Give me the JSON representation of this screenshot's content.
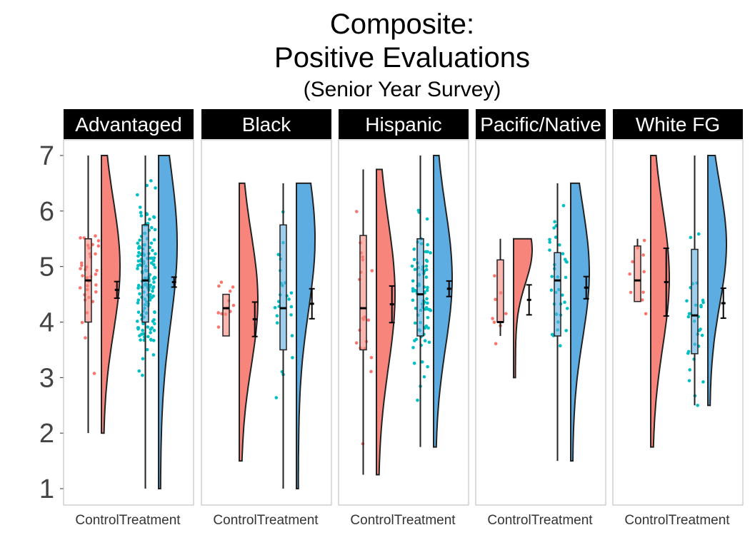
{
  "chart_data": {
    "type": "raincloud",
    "title": "Composite:",
    "title_line2": "Positive Evaluations",
    "subtitle": "(Senior Year Survey)",
    "xlabel": "",
    "ylabel": "",
    "ylim": [
      0.8,
      7.2
    ],
    "yticks": [
      1,
      2,
      3,
      4,
      5,
      6,
      7
    ],
    "categories": [
      "Control",
      "Treatment"
    ],
    "colors": {
      "Control": "#F8766D",
      "Treatment": "#00BFC4",
      "Control_fill": "#F8857B",
      "Treatment_fill": "#5DADE2"
    },
    "grid": false,
    "legend": "none",
    "panels": [
      {
        "name": "Advantaged",
        "groups": [
          {
            "group": "Control",
            "min": 2.0,
            "q1": 4.0,
            "median": 4.75,
            "q3": 5.5,
            "max": 7.0,
            "mean": 4.58,
            "ci": [
              4.43,
              4.73
            ],
            "density_range": [
              2.0,
              7.0
            ],
            "density_peak": 5.0,
            "n_points": 35
          },
          {
            "group": "Treatment",
            "min": 1.0,
            "q1": 4.0,
            "median": 4.75,
            "q3": 5.75,
            "max": 7.0,
            "mean": 4.72,
            "ci": [
              4.63,
              4.81
            ],
            "density_range": [
              1.0,
              7.0
            ],
            "density_peak": 5.4,
            "n_points": 150
          }
        ]
      },
      {
        "name": "Black",
        "groups": [
          {
            "group": "Control",
            "min": 3.75,
            "q1": 3.75,
            "median": 4.25,
            "q3": 4.5,
            "max": 4.5,
            "mean": 4.05,
            "ci": [
              3.74,
              4.36
            ],
            "density_range": [
              1.5,
              6.5
            ],
            "density_peak": 4.4,
            "n_points": 12
          },
          {
            "group": "Treatment",
            "min": 1.0,
            "q1": 3.5,
            "median": 4.25,
            "q3": 5.75,
            "max": 6.5,
            "mean": 4.33,
            "ci": [
              4.06,
              4.6
            ],
            "density_range": [
              1.0,
              6.5
            ],
            "density_peak": 5.5,
            "n_points": 25
          }
        ]
      },
      {
        "name": "Hispanic",
        "groups": [
          {
            "group": "Control",
            "min": 1.25,
            "q1": 3.5,
            "median": 4.25,
            "q3": 5.56,
            "max": 6.75,
            "mean": 4.32,
            "ci": [
              3.99,
              4.65
            ],
            "density_range": [
              1.25,
              6.75
            ],
            "density_peak": 4.5,
            "n_points": 20
          },
          {
            "group": "Treatment",
            "min": 1.75,
            "q1": 3.75,
            "median": 4.5,
            "q3": 5.5,
            "max": 7.0,
            "mean": 4.6,
            "ci": [
              4.46,
              4.74
            ],
            "density_range": [
              1.75,
              7.0
            ],
            "density_peak": 4.8,
            "n_points": 80
          }
        ]
      },
      {
        "name": "Pacific/Native",
        "groups": [
          {
            "group": "Control",
            "min": 3.75,
            "q1": 4.0,
            "median": 4.0,
            "q3": 5.12,
            "max": 5.5,
            "mean": 4.4,
            "ci": [
              4.13,
              4.67
            ],
            "density_range": [
              3.0,
              5.5
            ],
            "density_peak": 5.3,
            "n_points": 8
          },
          {
            "group": "Treatment",
            "min": 1.5,
            "q1": 3.75,
            "median": 4.75,
            "q3": 5.25,
            "max": 6.5,
            "mean": 4.62,
            "ci": [
              4.42,
              4.82
            ],
            "density_range": [
              1.5,
              6.5
            ],
            "density_peak": 4.9,
            "n_points": 35
          }
        ]
      },
      {
        "name": "White FG",
        "groups": [
          {
            "group": "Control",
            "min": 4.37,
            "q1": 4.37,
            "median": 4.75,
            "q3": 5.37,
            "max": 5.5,
            "mean": 4.72,
            "ci": [
              4.11,
              5.33
            ],
            "density_range": [
              1.75,
              7.0
            ],
            "density_peak": 4.8,
            "n_points": 10
          },
          {
            "group": "Treatment",
            "min": 2.5,
            "q1": 3.43,
            "median": 4.12,
            "q3": 5.31,
            "max": 7.0,
            "mean": 4.34,
            "ci": [
              4.07,
              4.61
            ],
            "density_range": [
              2.5,
              7.0
            ],
            "density_peak": 5.4,
            "n_points": 30
          }
        ]
      }
    ]
  }
}
